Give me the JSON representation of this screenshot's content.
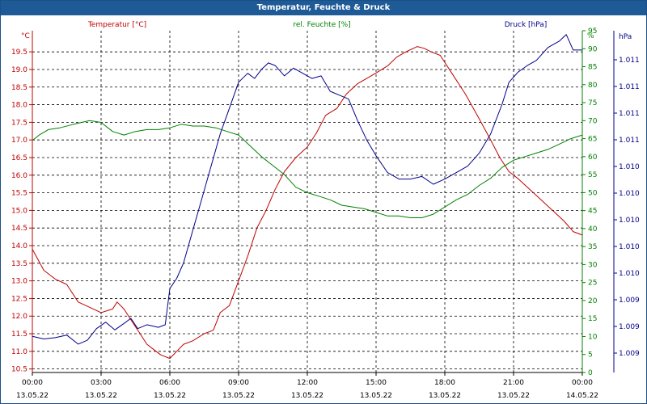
{
  "window": {
    "title": "Temperatur, Feuchte & Druck"
  },
  "colors": {
    "temperature": "#c00000",
    "humidity": "#008000",
    "pressure": "#00008b",
    "grid": "#000000",
    "titlebar": "#1e5a96"
  },
  "chart_data": {
    "type": "line",
    "title": "Temperatur, Feuchte & Druck",
    "grid": true,
    "x_tick_labels": [
      [
        "00:00",
        "13.05.22"
      ],
      [
        "03:00",
        "13.05.22"
      ],
      [
        "06:00",
        "13.05.22"
      ],
      [
        "09:00",
        "13.05.22"
      ],
      [
        "12:00",
        "13.05.22"
      ],
      [
        "15:00",
        "13.05.22"
      ],
      [
        "18:00",
        "13.05.22"
      ],
      [
        "21:00",
        "13.05.22"
      ],
      [
        "00:00",
        "14.05.22"
      ]
    ],
    "xlim": [
      0,
      24
    ],
    "axes": {
      "temperature": {
        "label": "Temperatur [°C]",
        "unit": "°C",
        "ylim": [
          10.4,
          20.1
        ],
        "ticks": [
          "10.5",
          "11.0",
          "11.5",
          "12.0",
          "12.5",
          "13.0",
          "13.5",
          "14.0",
          "14.5",
          "15.0",
          "15.5",
          "16.0",
          "16.5",
          "17.0",
          "17.5",
          "18.0",
          "18.5",
          "19.0",
          "19.5"
        ]
      },
      "humidity": {
        "label": "rel. Feuchte [%]",
        "unit": "%",
        "ylim": [
          0,
          95
        ],
        "ticks": [
          "0",
          "5",
          "10",
          "15",
          "20",
          "25",
          "30",
          "35",
          "40",
          "45",
          "50",
          "55",
          "60",
          "65",
          "70",
          "75",
          "80",
          "85",
          "90",
          "95"
        ]
      },
      "pressure": {
        "label": "Druck [hPa]",
        "unit": "hPa",
        "ylim": [
          1008.7,
          1011.35
        ],
        "ticks": [
          "1.009",
          "1.009",
          "1.009",
          "1.010",
          "1.010",
          "1.010",
          "1.010",
          "1.010",
          "1.011",
          "1.011",
          "1.011",
          "1.011"
        ]
      }
    },
    "series": [
      {
        "name": "Temperatur [°C]",
        "axis": "temperature",
        "points": [
          [
            0,
            13.9
          ],
          [
            0.5,
            13.3
          ],
          [
            1,
            13.05
          ],
          [
            1.5,
            12.9
          ],
          [
            2,
            12.4
          ],
          [
            2.5,
            12.25
          ],
          [
            3,
            12.1
          ],
          [
            3.5,
            12.2
          ],
          [
            3.7,
            12.4
          ],
          [
            4,
            12.2
          ],
          [
            4.3,
            11.9
          ],
          [
            4.7,
            11.5
          ],
          [
            5,
            11.2
          ],
          [
            5.3,
            11.05
          ],
          [
            5.6,
            10.9
          ],
          [
            6,
            10.8
          ],
          [
            6.3,
            11.0
          ],
          [
            6.6,
            11.2
          ],
          [
            7,
            11.3
          ],
          [
            7.5,
            11.5
          ],
          [
            7.9,
            11.6
          ],
          [
            8.2,
            12.1
          ],
          [
            8.6,
            12.3
          ],
          [
            9,
            13.0
          ],
          [
            9.4,
            13.7
          ],
          [
            9.8,
            14.5
          ],
          [
            10.2,
            15.0
          ],
          [
            10.6,
            15.6
          ],
          [
            11,
            16.1
          ],
          [
            11.5,
            16.5
          ],
          [
            12,
            16.8
          ],
          [
            12.4,
            17.2
          ],
          [
            12.8,
            17.7
          ],
          [
            13.3,
            17.9
          ],
          [
            13.7,
            18.3
          ],
          [
            14.2,
            18.6
          ],
          [
            14.6,
            18.75
          ],
          [
            15,
            18.9
          ],
          [
            15.5,
            19.1
          ],
          [
            15.9,
            19.35
          ],
          [
            16.3,
            19.5
          ],
          [
            16.8,
            19.65
          ],
          [
            17.1,
            19.6
          ],
          [
            17.4,
            19.5
          ],
          [
            17.8,
            19.4
          ],
          [
            18.3,
            18.9
          ],
          [
            18.9,
            18.3
          ],
          [
            19.5,
            17.6
          ],
          [
            20,
            17.0
          ],
          [
            20.4,
            16.5
          ],
          [
            20.8,
            16.1
          ],
          [
            21.2,
            15.9
          ],
          [
            21.7,
            15.6
          ],
          [
            22.2,
            15.3
          ],
          [
            22.7,
            15.0
          ],
          [
            23.2,
            14.7
          ],
          [
            23.6,
            14.4
          ],
          [
            24,
            14.3
          ]
        ]
      },
      {
        "name": "rel. Feuchte [%]",
        "axis": "humidity",
        "points": [
          [
            0,
            64.5
          ],
          [
            0.3,
            66
          ],
          [
            0.7,
            67.5
          ],
          [
            1.2,
            68
          ],
          [
            1.8,
            69
          ],
          [
            2.5,
            70
          ],
          [
            3,
            69.5
          ],
          [
            3.5,
            67
          ],
          [
            4,
            66
          ],
          [
            4.5,
            67
          ],
          [
            5,
            67.5
          ],
          [
            5.5,
            67.5
          ],
          [
            6,
            68
          ],
          [
            6.5,
            69
          ],
          [
            7,
            68.5
          ],
          [
            7.5,
            68.5
          ],
          [
            8,
            68
          ],
          [
            8.5,
            67
          ],
          [
            9,
            66
          ],
          [
            9.5,
            63
          ],
          [
            10,
            60
          ],
          [
            10.5,
            57.5
          ],
          [
            11,
            55
          ],
          [
            11.5,
            51.5
          ],
          [
            12,
            50
          ],
          [
            12.5,
            49
          ],
          [
            13,
            48
          ],
          [
            13.5,
            46.5
          ],
          [
            14,
            46
          ],
          [
            14.5,
            45.5
          ],
          [
            15,
            44.5
          ],
          [
            15.5,
            43.5
          ],
          [
            16,
            43.5
          ],
          [
            16.5,
            43
          ],
          [
            17,
            43
          ],
          [
            17.5,
            44
          ],
          [
            18,
            46
          ],
          [
            18.5,
            48
          ],
          [
            19,
            49.5
          ],
          [
            19.5,
            52
          ],
          [
            20,
            54
          ],
          [
            20.5,
            57
          ],
          [
            21,
            59
          ],
          [
            21.5,
            60
          ],
          [
            22,
            61
          ],
          [
            22.5,
            62
          ],
          [
            23,
            63.5
          ],
          [
            23.5,
            65
          ],
          [
            24,
            66
          ]
        ]
      },
      {
        "name": "Druck [hPa]",
        "axis": "pressure",
        "points": [
          [
            0,
            1008.98
          ],
          [
            0.5,
            1008.96
          ],
          [
            1,
            1008.97
          ],
          [
            1.5,
            1008.99
          ],
          [
            2,
            1008.92
          ],
          [
            2.4,
            1008.95
          ],
          [
            2.8,
            1009.04
          ],
          [
            3.2,
            1009.09
          ],
          [
            3.6,
            1009.03
          ],
          [
            4,
            1009.08
          ],
          [
            4.3,
            1009.12
          ],
          [
            4.6,
            1009.04
          ],
          [
            5,
            1009.07
          ],
          [
            5.5,
            1009.05
          ],
          [
            5.8,
            1009.07
          ],
          [
            6,
            1009.35
          ],
          [
            6.3,
            1009.43
          ],
          [
            6.6,
            1009.55
          ],
          [
            7,
            1009.8
          ],
          [
            7.4,
            1010.05
          ],
          [
            7.8,
            1010.3
          ],
          [
            8.2,
            1010.55
          ],
          [
            8.6,
            1010.75
          ],
          [
            9,
            1010.95
          ],
          [
            9.4,
            1011.02
          ],
          [
            9.7,
            1010.98
          ],
          [
            10,
            1011.05
          ],
          [
            10.3,
            1011.1
          ],
          [
            10.6,
            1011.08
          ],
          [
            11,
            1011.0
          ],
          [
            11.4,
            1011.06
          ],
          [
            11.8,
            1011.02
          ],
          [
            12.2,
            1010.98
          ],
          [
            12.6,
            1011.0
          ],
          [
            13,
            1010.88
          ],
          [
            13.4,
            1010.85
          ],
          [
            13.8,
            1010.82
          ],
          [
            14.2,
            1010.65
          ],
          [
            14.6,
            1010.5
          ],
          [
            15,
            1010.38
          ],
          [
            15.5,
            1010.25
          ],
          [
            16,
            1010.2
          ],
          [
            16.5,
            1010.2
          ],
          [
            17,
            1010.22
          ],
          [
            17.5,
            1010.16
          ],
          [
            18,
            1010.2
          ],
          [
            18.5,
            1010.25
          ],
          [
            19,
            1010.3
          ],
          [
            19.5,
            1010.4
          ],
          [
            20,
            1010.55
          ],
          [
            20.5,
            1010.78
          ],
          [
            20.8,
            1010.95
          ],
          [
            21.2,
            1011.03
          ],
          [
            21.6,
            1011.08
          ],
          [
            22,
            1011.12
          ],
          [
            22.5,
            1011.22
          ],
          [
            23,
            1011.27
          ],
          [
            23.3,
            1011.32
          ],
          [
            23.6,
            1011.2
          ],
          [
            24,
            1011.2
          ]
        ]
      }
    ]
  }
}
